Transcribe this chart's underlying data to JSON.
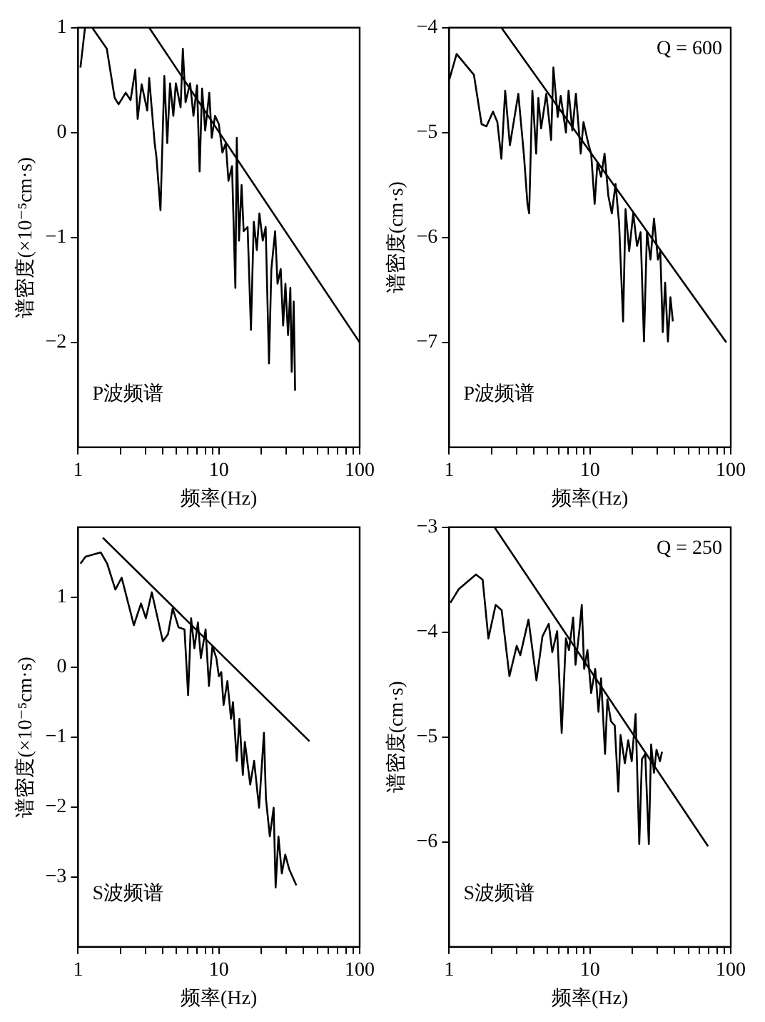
{
  "chart_data": [
    {
      "type": "line",
      "log": "x",
      "xlabel": "频率(Hz)",
      "ylabel": "谱密度(×10⁻⁵cm·s)",
      "xlim": [
        1,
        100
      ],
      "ylim": [
        -3,
        1
      ],
      "xticks": [
        1,
        {
          "value": 2,
          "label": null
        },
        {
          "value": 3,
          "label": null
        },
        {
          "value": 4,
          "label": null
        },
        {
          "value": 5,
          "label": null
        },
        {
          "value": 6,
          "label": null
        },
        {
          "value": 7,
          "label": null
        },
        {
          "value": 8,
          "label": null
        },
        {
          "value": 9,
          "label": null
        },
        10,
        {
          "value": 20,
          "label": null
        },
        {
          "value": 30,
          "label": null
        },
        {
          "value": 40,
          "label": null
        },
        {
          "value": 50,
          "label": null
        },
        {
          "value": 60,
          "label": null
        },
        {
          "value": 70,
          "label": null
        },
        {
          "value": 80,
          "label": null
        },
        {
          "value": 90,
          "label": null
        },
        100
      ],
      "yticks": [
        -2,
        -1,
        0,
        1
      ],
      "grid": false,
      "marker": "none",
      "line_style": "solid",
      "annotations": [
        "P波频谱"
      ],
      "series": [
        {
          "color": "#000000",
          "x": [
            1.04,
            1.12,
            1.26,
            1.6,
            1.82,
            1.94,
            2.18,
            2.36,
            2.55,
            2.65,
            2.83,
            3.1,
            3.2,
            3.5,
            3.6,
            3.85,
            4.1,
            4.3,
            4.5,
            4.75,
            4.95,
            5.35,
            5.55,
            5.8,
            6.25,
            6.6,
            7.0,
            7.3,
            7.6,
            8.0,
            8.55,
            8.9,
            9.4,
            10,
            10.6,
            11.2,
            11.7,
            12.4,
            13.1,
            13.4,
            13.9,
            14.5,
            15.0,
            16.0,
            16.9,
            17.7,
            18.6,
            19.4,
            20.5,
            21.5,
            22.7,
            23.6,
            25.1,
            26.1,
            27.5,
            28.6,
            29.7,
            31.0,
            32.2,
            32.9,
            34.0,
            34.8
          ],
          "values": [
            0.62,
            1.0,
            1.0,
            0.8,
            0.33,
            0.27,
            0.38,
            0.31,
            0.6,
            0.13,
            0.46,
            0.21,
            0.52,
            -0.1,
            -0.23,
            -0.74,
            0.54,
            -0.1,
            0.47,
            0.16,
            0.47,
            0.24,
            0.8,
            0.29,
            0.47,
            0.16,
            0.45,
            -0.37,
            0.42,
            0.02,
            0.38,
            -0.05,
            0.16,
            0.08,
            -0.19,
            -0.1,
            -0.46,
            -0.32,
            -1.48,
            -0.05,
            -1.03,
            -0.5,
            -0.94,
            -0.9,
            -1.88,
            -0.85,
            -1.12,
            -0.77,
            -1.03,
            -0.9,
            -2.2,
            -1.3,
            -0.94,
            -1.44,
            -1.3,
            -1.84,
            -1.44,
            -1.93,
            -1.48,
            -2.28,
            -1.61,
            -2.46
          ]
        },
        {
          "color": "#000000",
          "x": [
            3.2,
            100
          ],
          "values": [
            1,
            -2
          ]
        }
      ]
    },
    {
      "type": "line",
      "log": "x",
      "xlabel": "频率(Hz)",
      "ylabel": "谱密度(cm·s)",
      "xlim": [
        1,
        100
      ],
      "ylim": [
        -8,
        -4
      ],
      "xticks": [
        1,
        {
          "value": 2,
          "label": null
        },
        {
          "value": 3,
          "label": null
        },
        {
          "value": 4,
          "label": null
        },
        {
          "value": 5,
          "label": null
        },
        {
          "value": 6,
          "label": null
        },
        {
          "value": 7,
          "label": null
        },
        {
          "value": 8,
          "label": null
        },
        {
          "value": 9,
          "label": null
        },
        10,
        {
          "value": 20,
          "label": null
        },
        {
          "value": 30,
          "label": null
        },
        {
          "value": 40,
          "label": null
        },
        {
          "value": 50,
          "label": null
        },
        {
          "value": 60,
          "label": null
        },
        {
          "value": 70,
          "label": null
        },
        {
          "value": 80,
          "label": null
        },
        {
          "value": 90,
          "label": null
        },
        100
      ],
      "yticks": [
        -7,
        -6,
        -5,
        -4
      ],
      "grid": false,
      "marker": "none",
      "line_style": "solid",
      "annotations": [
        "P波频谱",
        "Q = 600"
      ],
      "series": [
        {
          "color": "#000000",
          "x": [
            1.0,
            1.13,
            1.5,
            1.7,
            1.84,
            2.05,
            2.2,
            2.35,
            2.5,
            2.7,
            3.1,
            3.4,
            3.6,
            3.7,
            3.9,
            4.15,
            4.3,
            4.5,
            4.9,
            5.3,
            5.5,
            5.9,
            6.2,
            6.75,
            7.05,
            7.5,
            7.95,
            8.6,
            9.0,
            9.8,
            10.2,
            10.8,
            11.3,
            12.0,
            12.7,
            13.5,
            14.3,
            15.2,
            16.1,
            17.2,
            17.9,
            19.0,
            20.3,
            21.6,
            22.9,
            24.2,
            25.4,
            26.9,
            28.5,
            30.4,
            31.6,
            32.9,
            34.2,
            35.8,
            37.3,
            38.8
          ],
          "values": [
            -4.5,
            -4.25,
            -4.45,
            -4.92,
            -4.94,
            -4.8,
            -4.9,
            -5.25,
            -4.6,
            -5.12,
            -4.63,
            -5.22,
            -5.68,
            -5.77,
            -4.6,
            -5.2,
            -4.67,
            -4.96,
            -4.63,
            -5.07,
            -4.38,
            -4.85,
            -4.65,
            -5.0,
            -4.6,
            -4.98,
            -4.63,
            -5.2,
            -4.9,
            -5.12,
            -5.2,
            -5.68,
            -5.29,
            -5.42,
            -5.2,
            -5.6,
            -5.77,
            -5.49,
            -5.86,
            -6.8,
            -5.73,
            -6.13,
            -5.77,
            -6.08,
            -5.95,
            -6.99,
            -5.95,
            -6.21,
            -5.82,
            -6.21,
            -6.13,
            -6.9,
            -6.43,
            -6.99,
            -6.57,
            -6.8
          ]
        },
        {
          "color": "#000000",
          "x": [
            2.35,
            93
          ],
          "values": [
            -4,
            -7
          ]
        }
      ]
    },
    {
      "type": "line",
      "log": "x",
      "xlabel": "频率(Hz)",
      "ylabel": "谱密度(×10⁻⁵cm·s)",
      "xlim": [
        1,
        100
      ],
      "ylim": [
        -4,
        2
      ],
      "xticks": [
        1,
        {
          "value": 2,
          "label": null
        },
        {
          "value": 3,
          "label": null
        },
        {
          "value": 4,
          "label": null
        },
        {
          "value": 5,
          "label": null
        },
        {
          "value": 6,
          "label": null
        },
        {
          "value": 7,
          "label": null
        },
        {
          "value": 8,
          "label": null
        },
        {
          "value": 9,
          "label": null
        },
        10,
        {
          "value": 20,
          "label": null
        },
        {
          "value": 30,
          "label": null
        },
        {
          "value": 40,
          "label": null
        },
        {
          "value": 50,
          "label": null
        },
        {
          "value": 60,
          "label": null
        },
        {
          "value": 70,
          "label": null
        },
        {
          "value": 80,
          "label": null
        },
        {
          "value": 90,
          "label": null
        },
        100
      ],
      "yticks": [
        -3,
        -2,
        -1,
        0,
        1
      ],
      "grid": false,
      "marker": "none",
      "line_style": "solid",
      "annotations": [
        "S波频谱"
      ],
      "series": [
        {
          "color": "#000000",
          "x": [
            1.04,
            1.13,
            1.45,
            1.61,
            1.84,
            2.04,
            2.49,
            2.8,
            3.03,
            3.34,
            4.0,
            4.35,
            4.7,
            5.17,
            5.7,
            6.05,
            6.35,
            6.7,
            7.1,
            7.45,
            8.05,
            8.5,
            9.0,
            9.6,
            10.0,
            10.4,
            10.8,
            11.5,
            12.2,
            12.6,
            13.4,
            14.0,
            14.8,
            15.3,
            16.7,
            17.8,
            19.3,
            20.9,
            21.6,
            23.0,
            24.5,
            25.3,
            26.5,
            28.0,
            29.6,
            31.6,
            35.5
          ],
          "values": [
            1.48,
            1.58,
            1.64,
            1.48,
            1.11,
            1.28,
            0.6,
            0.91,
            0.7,
            1.07,
            0.37,
            0.47,
            0.84,
            0.57,
            0.54,
            -0.4,
            0.7,
            0.27,
            0.64,
            0.13,
            0.54,
            -0.27,
            0.3,
            0.13,
            -0.13,
            -0.07,
            -0.54,
            -0.2,
            -0.74,
            -0.5,
            -1.34,
            -0.74,
            -1.54,
            -1.07,
            -1.68,
            -1.34,
            -2.01,
            -0.94,
            -1.88,
            -2.42,
            -2.01,
            -3.15,
            -2.42,
            -2.95,
            -2.68,
            -2.89,
            -3.12
          ]
        },
        {
          "color": "#000000",
          "x": [
            1.5,
            44
          ],
          "values": [
            1.85,
            -1.06
          ]
        }
      ]
    },
    {
      "type": "line",
      "log": "x",
      "xlabel": "频率(Hz)",
      "ylabel": "谱密度(cm·s)",
      "xlim": [
        1,
        100
      ],
      "ylim": [
        -7,
        -3
      ],
      "xticks": [
        1,
        {
          "value": 2,
          "label": null
        },
        {
          "value": 3,
          "label": null
        },
        {
          "value": 4,
          "label": null
        },
        {
          "value": 5,
          "label": null
        },
        {
          "value": 6,
          "label": null
        },
        {
          "value": 7,
          "label": null
        },
        {
          "value": 8,
          "label": null
        },
        {
          "value": 9,
          "label": null
        },
        10,
        {
          "value": 20,
          "label": null
        },
        {
          "value": 30,
          "label": null
        },
        {
          "value": 40,
          "label": null
        },
        {
          "value": 50,
          "label": null
        },
        {
          "value": 60,
          "label": null
        },
        {
          "value": 70,
          "label": null
        },
        {
          "value": 80,
          "label": null
        },
        {
          "value": 90,
          "label": null
        },
        100
      ],
      "yticks": [
        -6,
        -5,
        -4,
        -3
      ],
      "grid": false,
      "marker": "none",
      "line_style": "solid",
      "annotations": [
        "S波频谱",
        "Q = 250"
      ],
      "series": [
        {
          "color": "#000000",
          "x": [
            1.02,
            1.17,
            1.55,
            1.73,
            1.9,
            2.14,
            2.36,
            2.68,
            3.02,
            3.2,
            3.66,
            4.17,
            4.6,
            5.1,
            5.4,
            5.85,
            6.3,
            6.75,
            7.1,
            7.6,
            7.9,
            8.4,
            8.75,
            9.1,
            9.6,
            10.2,
            10.9,
            11.5,
            12.0,
            12.8,
            13.3,
            14.1,
            15.0,
            15.9,
            16.5,
            17.7,
            18.7,
            19.8,
            21.1,
            22.4,
            23.4,
            24.7,
            26.2,
            27.2,
            28.5,
            29.7,
            31.4,
            32.5
          ],
          "values": [
            -3.72,
            -3.59,
            -3.45,
            -3.5,
            -4.06,
            -3.74,
            -3.79,
            -4.42,
            -4.13,
            -4.22,
            -3.88,
            -4.46,
            -4.04,
            -3.92,
            -4.19,
            -3.99,
            -4.96,
            -4.06,
            -4.17,
            -3.86,
            -4.31,
            -3.99,
            -3.74,
            -4.35,
            -4.17,
            -4.58,
            -4.35,
            -4.76,
            -4.44,
            -5.16,
            -4.64,
            -4.85,
            -4.89,
            -5.52,
            -4.98,
            -5.25,
            -5.03,
            -5.23,
            -4.78,
            -6.02,
            -5.21,
            -5.16,
            -6.02,
            -5.07,
            -5.34,
            -5.12,
            -5.23,
            -5.14
          ]
        },
        {
          "color": "#000000",
          "x": [
            2.1,
            69
          ],
          "values": [
            -3,
            -6.04
          ]
        }
      ]
    }
  ]
}
